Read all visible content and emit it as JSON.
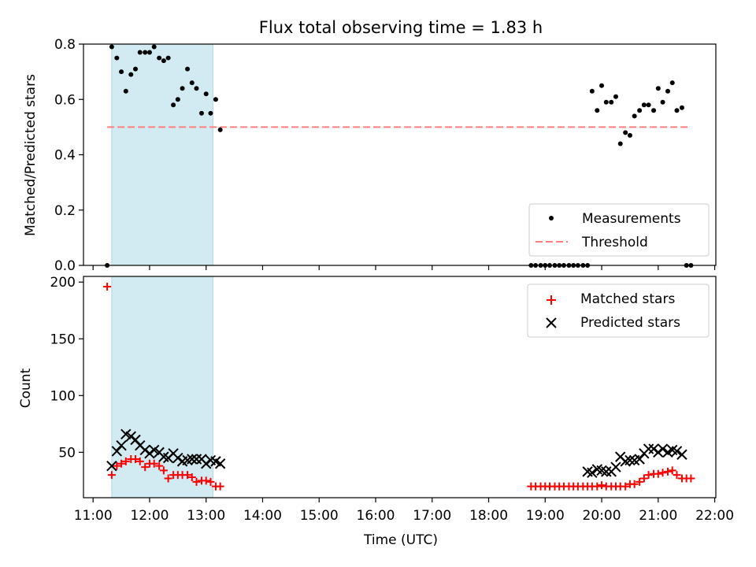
{
  "title": "Flux total observing time = 1.83 h",
  "colors": {
    "span": "#add8e6",
    "threshold": "#ff7f7f",
    "matched": "#ff0000",
    "predicted": "#000000",
    "measurement": "#000000"
  },
  "chart_data": [
    {
      "type": "scatter",
      "ylabel": "Matched/Predicted stars",
      "xlim": [
        10.83,
        22.02
      ],
      "ylim": [
        0,
        0.8
      ],
      "yticks": [
        0.0,
        0.2,
        0.4,
        0.6,
        0.8
      ],
      "ytick_labels": [
        "0.0",
        "0.2",
        "0.4",
        "0.6",
        "0.8"
      ],
      "span": [
        11.33,
        13.12
      ],
      "threshold": {
        "y": 0.5,
        "x": [
          11.25,
          21.55
        ]
      },
      "legend": {
        "placement": "lower-right",
        "entries": [
          "Measurements",
          "Threshold"
        ]
      },
      "series": [
        {
          "name": "Measurements",
          "x": [
            11.25,
            11.33,
            11.42,
            11.5,
            11.58,
            11.67,
            11.75,
            11.83,
            11.92,
            12.0,
            12.08,
            12.17,
            12.25,
            12.33,
            12.42,
            12.5,
            12.58,
            12.67,
            12.75,
            12.83,
            12.92,
            13.0,
            13.08,
            13.17,
            13.25,
            18.75,
            18.83,
            18.92,
            19.0,
            19.08,
            19.17,
            19.25,
            19.33,
            19.42,
            19.5,
            19.58,
            19.67,
            19.75,
            19.83,
            19.92,
            20.0,
            20.08,
            20.17,
            20.25,
            20.33,
            20.42,
            20.5,
            20.58,
            20.67,
            20.75,
            20.83,
            20.92,
            21.0,
            21.08,
            21.17,
            21.25,
            21.33,
            21.42,
            21.5,
            21.58
          ],
          "y": [
            0.0,
            0.79,
            0.75,
            0.7,
            0.63,
            0.69,
            0.71,
            0.77,
            0.77,
            0.77,
            0.79,
            0.75,
            0.74,
            0.75,
            0.58,
            0.6,
            0.64,
            0.71,
            0.66,
            0.64,
            0.55,
            0.62,
            0.55,
            0.6,
            0.49,
            0.0,
            0.0,
            0.0,
            0.0,
            0.0,
            0.0,
            0.0,
            0.0,
            0.0,
            0.0,
            0.0,
            0.0,
            0.0,
            0.63,
            0.56,
            0.65,
            0.59,
            0.59,
            0.61,
            0.44,
            0.48,
            0.47,
            0.54,
            0.56,
            0.58,
            0.58,
            0.56,
            0.64,
            0.59,
            0.63,
            0.66,
            0.56,
            0.57,
            0.0,
            0.0
          ]
        }
      ]
    },
    {
      "type": "scatter",
      "xlabel": "Time (UTC)",
      "ylabel": "Count",
      "xlim": [
        10.83,
        22.02
      ],
      "ylim": [
        10,
        205
      ],
      "yticks": [
        50,
        100,
        150,
        200
      ],
      "ytick_labels": [
        "50",
        "100",
        "150",
        "200"
      ],
      "xticks": [
        11,
        12,
        13,
        14,
        15,
        16,
        17,
        18,
        19,
        20,
        21,
        22
      ],
      "xtick_labels": [
        "11:00",
        "12:00",
        "13:00",
        "14:00",
        "15:00",
        "16:00",
        "17:00",
        "18:00",
        "19:00",
        "20:00",
        "21:00",
        "22:00"
      ],
      "span": [
        11.33,
        13.12
      ],
      "legend": {
        "placement": "top-right",
        "entries": [
          "Matched stars",
          "Predicted stars"
        ]
      },
      "series": [
        {
          "name": "Matched stars",
          "x": [
            11.25,
            11.33,
            11.42,
            11.5,
            11.58,
            11.67,
            11.75,
            11.83,
            11.92,
            12.0,
            12.08,
            12.17,
            12.25,
            12.33,
            12.42,
            12.5,
            12.58,
            12.67,
            12.75,
            12.83,
            12.92,
            13.0,
            13.08,
            13.17,
            13.25,
            18.75,
            18.83,
            18.92,
            19.0,
            19.08,
            19.17,
            19.25,
            19.33,
            19.42,
            19.5,
            19.58,
            19.67,
            19.75,
            19.83,
            19.92,
            20.0,
            20.08,
            20.17,
            20.25,
            20.33,
            20.42,
            20.5,
            20.58,
            20.67,
            20.75,
            20.83,
            20.92,
            21.0,
            21.08,
            21.17,
            21.25,
            21.33,
            21.42,
            21.5,
            21.58
          ],
          "y": [
            196,
            30,
            38,
            40,
            42,
            44,
            44,
            42,
            37,
            40,
            40,
            38,
            34,
            27,
            30,
            30,
            30,
            30,
            28,
            24,
            25,
            25,
            24,
            20,
            20,
            20,
            20,
            20,
            20,
            20,
            20,
            20,
            20,
            20,
            20,
            20,
            20,
            20,
            20,
            20,
            21,
            20,
            20,
            20,
            20,
            20,
            22,
            22,
            24,
            27,
            30,
            31,
            31,
            32,
            33,
            34,
            30,
            27,
            27,
            27
          ]
        },
        {
          "name": "Predicted stars",
          "x": [
            11.33,
            11.42,
            11.5,
            11.58,
            11.67,
            11.75,
            11.83,
            11.92,
            12.0,
            12.08,
            12.17,
            12.25,
            12.33,
            12.42,
            12.5,
            12.58,
            12.67,
            12.75,
            12.83,
            12.92,
            13.0,
            13.08,
            13.17,
            13.25,
            19.75,
            19.83,
            19.92,
            20.0,
            20.08,
            20.17,
            20.25,
            20.33,
            20.42,
            20.5,
            20.58,
            20.67,
            20.75,
            20.83,
            20.92,
            21.0,
            21.08,
            21.17,
            21.25,
            21.33,
            21.42
          ],
          "y": [
            38,
            51,
            56,
            66,
            64,
            61,
            56,
            52,
            49,
            52,
            50,
            46,
            45,
            49,
            45,
            42,
            43,
            44,
            44,
            44,
            40,
            43,
            42,
            40,
            33,
            32,
            35,
            34,
            33,
            33,
            37,
            46,
            42,
            43,
            43,
            44,
            49,
            53,
            53,
            50,
            53,
            50,
            52,
            51,
            48
          ]
        }
      ]
    }
  ]
}
